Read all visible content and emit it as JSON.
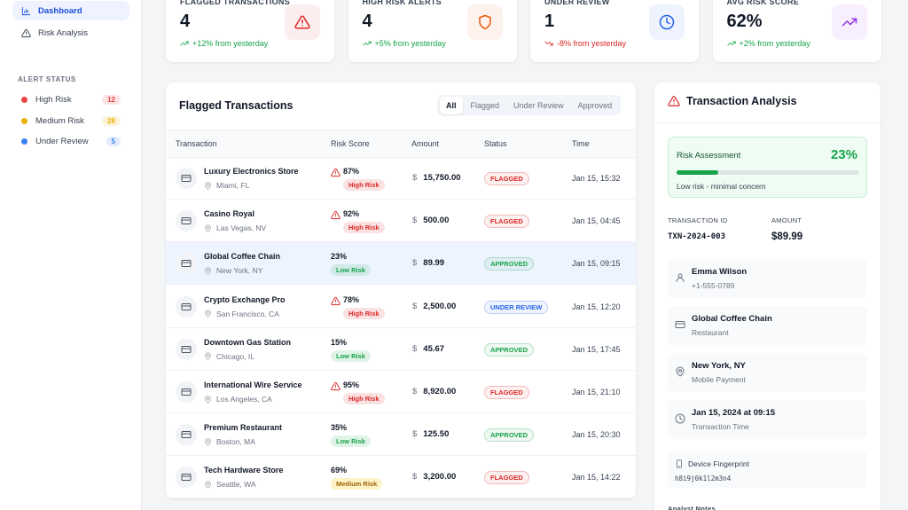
{
  "sidebar": {
    "nav": [
      "Dashboard",
      "Risk Analysis"
    ],
    "active_nav": 0,
    "section_title": "ALERT STATUS",
    "alerts": [
      {
        "label": "High Risk",
        "count": "12",
        "color": "#ef4444"
      },
      {
        "label": "Medium Risk",
        "count": "28",
        "color": "#eab308"
      },
      {
        "label": "Under Review",
        "count": "5",
        "color": "#3b82f6"
      }
    ]
  },
  "stats": [
    {
      "title": "FLAGGED TRANSACTIONS",
      "value": "4",
      "change": "+12% from yesterday",
      "color": "#dc2626",
      "change_color": "#16a34a"
    },
    {
      "title": "HIGH RISK ALERTS",
      "value": "4",
      "change": "+5% from yesterday",
      "color": "#ea580c",
      "change_color": "#16a34a"
    },
    {
      "title": "UNDER REVIEW",
      "value": "1",
      "change": "-8% from yesterday",
      "color": "#2563eb",
      "change_color": "#dc2626"
    },
    {
      "title": "AVG RISK SCORE",
      "value": "62%",
      "change": "+2% from yesterday",
      "color": "#9333ea",
      "change_color": "#16a34a"
    }
  ],
  "table": {
    "title": "Flagged Transactions",
    "filters": [
      "All",
      "Flagged",
      "Under Review",
      "Approved"
    ],
    "active_filter": 0,
    "columns": [
      "Transaction",
      "Risk Score",
      "Amount",
      "Status",
      "Time"
    ],
    "currency": "$",
    "selected_row": 2,
    "rows": [
      {
        "name": "Luxury Electronics Store",
        "location": "Miami, FL",
        "score": "87%",
        "risk": "High Risk",
        "amount": "15,750.00",
        "status": "FLAGGED",
        "time": "Jan 15, 15:32",
        "alert": true,
        "risk_color": "#dc2626",
        "status_color": "#dc2626"
      },
      {
        "name": "Casino Royal",
        "location": "Las Vegas, NV",
        "score": "92%",
        "risk": "High Risk",
        "amount": "500.00",
        "status": "FLAGGED",
        "time": "Jan 15, 04:45",
        "alert": true,
        "risk_color": "#dc2626",
        "status_color": "#dc2626"
      },
      {
        "name": "Global Coffee Chain",
        "location": "New York, NY",
        "score": "23%",
        "risk": "Low Risk",
        "amount": "89.99",
        "status": "APPROVED",
        "time": "Jan 15, 09:15",
        "alert": false,
        "risk_color": "#16a34a",
        "status_color": "#16a34a"
      },
      {
        "name": "Crypto Exchange Pro",
        "location": "San Francisco, CA",
        "score": "78%",
        "risk": "High Risk",
        "amount": "2,500.00",
        "status": "UNDER REVIEW",
        "time": "Jan 15, 12:20",
        "alert": true,
        "risk_color": "#dc2626",
        "status_color": "#2563eb"
      },
      {
        "name": "Downtown Gas Station",
        "location": "Chicago, IL",
        "score": "15%",
        "risk": "Low Risk",
        "amount": "45.67",
        "status": "APPROVED",
        "time": "Jan 15, 17:45",
        "alert": false,
        "risk_color": "#16a34a",
        "status_color": "#16a34a"
      },
      {
        "name": "International Wire Service",
        "location": "Los Angeles, CA",
        "score": "95%",
        "risk": "High Risk",
        "amount": "8,920.00",
        "status": "FLAGGED",
        "time": "Jan 15, 21:10",
        "alert": true,
        "risk_color": "#dc2626",
        "status_color": "#dc2626"
      },
      {
        "name": "Premium Restaurant",
        "location": "Boston, MA",
        "score": "35%",
        "risk": "Low Risk",
        "amount": "125.50",
        "status": "APPROVED",
        "time": "Jan 15, 20:30",
        "alert": false,
        "risk_color": "#16a34a",
        "status_color": "#16a34a"
      },
      {
        "name": "Tech Hardware Store",
        "location": "Seattle, WA",
        "score": "69%",
        "risk": "Medium Risk",
        "amount": "3,200.00",
        "status": "FLAGGED",
        "time": "Jan 15, 14:22",
        "alert": false,
        "risk_color": "#a16207",
        "status_color": "#dc2626"
      }
    ]
  },
  "analysis": {
    "title": "Transaction Analysis",
    "assessment_label": "Risk Assessment",
    "assessment_value": "23%",
    "assessment_note": "Low risk - minimal concern",
    "id_label": "TRANSACTION ID",
    "id": "TXN-2024-003",
    "amount_label": "AMOUNT",
    "amount": "$89.99",
    "details": [
      {
        "title": "Emma Wilson",
        "sub": "+1-555-0789"
      },
      {
        "title": "Global Coffee Chain",
        "sub": "Restaurant"
      },
      {
        "title": "New York, NY",
        "sub": "Mobile Payment"
      },
      {
        "title": "Jan 15, 2024 at 09:15",
        "sub": "Transaction Time"
      }
    ],
    "fingerprint_label": "Device Fingerprint",
    "fingerprint": "h8i9j0k1l2m3n4",
    "notes_label": "Analyst Notes"
  }
}
